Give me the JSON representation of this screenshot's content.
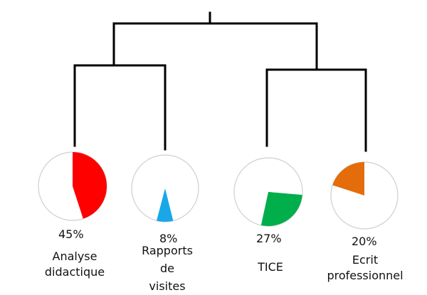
{
  "chart_data": {
    "type": "pie",
    "nodes": [
      {
        "percent_label": "45%",
        "value": 45,
        "label_lines": [
          "Analyse",
          "didactique"
        ],
        "color": "#ff0000"
      },
      {
        "percent_label": "8%",
        "value": 8,
        "label_lines": [
          "Rapports",
          "de",
          "visites"
        ],
        "color": "#1aa7e8"
      },
      {
        "percent_label": "27%",
        "value": 27,
        "label_lines": [
          "TICE"
        ],
        "color": "#00ae4c"
      },
      {
        "percent_label": "20%",
        "value": 20,
        "label_lines": [
          "Ecrit",
          "professionnel"
        ],
        "color": "#e46c0a"
      }
    ]
  },
  "colors": {
    "tree_line": "#000000",
    "pie_outline": "#cfcfcf",
    "pie_background": "#ffffff"
  }
}
